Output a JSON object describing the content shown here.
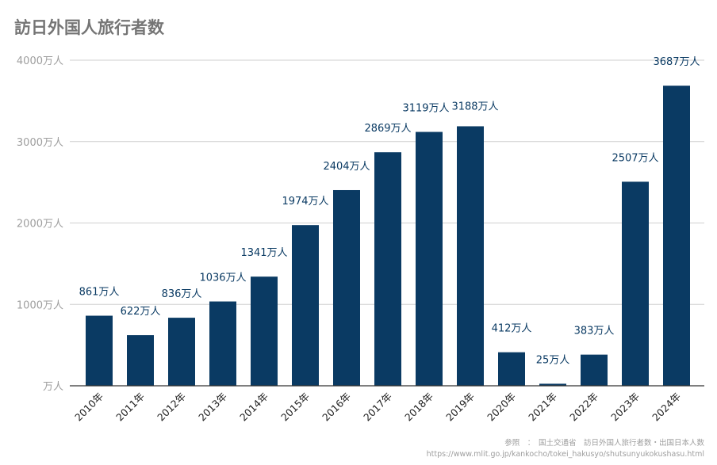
{
  "chart_data": {
    "type": "bar",
    "title": "訪日外国人旅行者数",
    "categories": [
      "2010年",
      "2011年",
      "2012年",
      "2013年",
      "2014年",
      "2015年",
      "2016年",
      "2017年",
      "2018年",
      "2019年",
      "2020年",
      "2021年",
      "2022年",
      "2023年",
      "2024年"
    ],
    "values": [
      861,
      622,
      836,
      1036,
      1341,
      1974,
      2404,
      2869,
      3119,
      3188,
      412,
      25,
      383,
      2507,
      3687
    ],
    "data_labels": [
      "861万人",
      "622万人",
      "836万人",
      "1036万人",
      "1341万人",
      "1974万人",
      "2404万人",
      "2869万人",
      "3119万人",
      "3188万人",
      "412万人",
      "25万人",
      "383万人",
      "2507万人",
      "3687万人"
    ],
    "y_ticks": [
      0,
      1000,
      2000,
      3000,
      4000
    ],
    "y_tick_labels": [
      "万人",
      "1000万人",
      "2000万人",
      "3000万人",
      "4000万人"
    ],
    "ylim": [
      0,
      4000
    ],
    "unit": "万人",
    "grid": true,
    "legend": "none",
    "bar_color": "#0a3a63",
    "source": {
      "line1": "参照　：　国土交通省　訪日外国人旅行者数・出国日本人数",
      "line2": "https://www.mlit.go.jp/kankocho/tokei_hakusyo/shutsunyukokushasu.html"
    }
  }
}
